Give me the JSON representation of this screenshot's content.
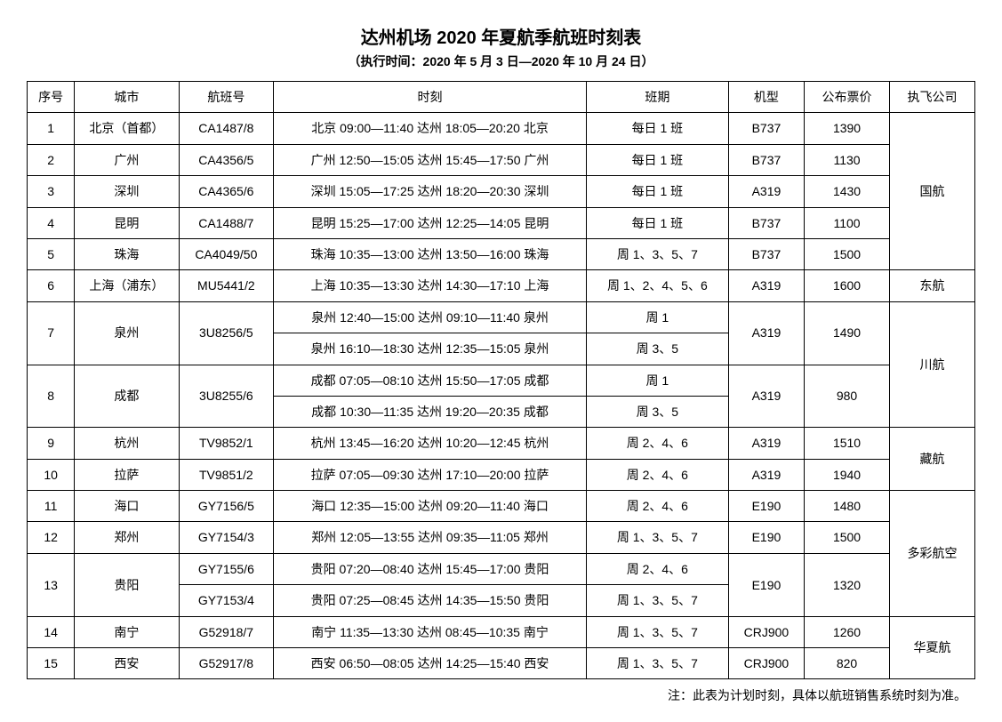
{
  "title": "达州机场 2020 年夏航季航班时刻表",
  "subtitle": "（执行时间：2020 年 5 月 3 日—2020 年 10 月 24 日）",
  "headers": {
    "idx": "序号",
    "city": "城市",
    "flight": "航班号",
    "time": "时刻",
    "days": "班期",
    "model": "机型",
    "price": "公布票价",
    "airline": "执飞公司"
  },
  "rows": {
    "r1": {
      "idx": "1",
      "city": "北京（首都）",
      "flight": "CA1487/8",
      "time": "北京 09:00—11:40 达州 18:05—20:20 北京",
      "days": "每日 1 班",
      "model": "B737",
      "price": "1390"
    },
    "r2": {
      "idx": "2",
      "city": "广州",
      "flight": "CA4356/5",
      "time": "广州 12:50—15:05 达州 15:45—17:50 广州",
      "days": "每日 1 班",
      "model": "B737",
      "price": "1130"
    },
    "r3": {
      "idx": "3",
      "city": "深圳",
      "flight": "CA4365/6",
      "time": "深圳 15:05—17:25 达州 18:20—20:30 深圳",
      "days": "每日 1 班",
      "model": "A319",
      "price": "1430"
    },
    "r4": {
      "idx": "4",
      "city": "昆明",
      "flight": "CA1488/7",
      "time": "昆明 15:25—17:00 达州 12:25—14:05 昆明",
      "days": "每日 1 班",
      "model": "B737",
      "price": "1100"
    },
    "r5": {
      "idx": "5",
      "city": "珠海",
      "flight": "CA4049/50",
      "time": "珠海 10:35—13:00 达州 13:50—16:00 珠海",
      "days": "周 1、3、5、7",
      "model": "B737",
      "price": "1500"
    },
    "r6": {
      "idx": "6",
      "city": "上海（浦东）",
      "flight": "MU5441/2",
      "time": "上海 10:35—13:30 达州 14:30—17:10 上海",
      "days": "周 1、2、4、5、6",
      "model": "A319",
      "price": "1600"
    },
    "r7a": {
      "idx": "7",
      "city": "泉州",
      "flight": "3U8256/5",
      "time": "泉州 12:40—15:00 达州 09:10—11:40 泉州",
      "days": "周 1",
      "model": "A319",
      "price": "1490"
    },
    "r7b": {
      "time": "泉州 16:10—18:30 达州 12:35—15:05 泉州",
      "days": "周 3、5"
    },
    "r8a": {
      "idx": "8",
      "city": "成都",
      "flight": "3U8255/6",
      "time": "成都 07:05—08:10 达州 15:50—17:05 成都",
      "days": "周 1",
      "model": "A319",
      "price": "980"
    },
    "r8b": {
      "time": "成都 10:30—11:35 达州 19:20—20:35 成都",
      "days": "周 3、5"
    },
    "r9": {
      "idx": "9",
      "city": "杭州",
      "flight": "TV9852/1",
      "time": "杭州 13:45—16:20 达州 10:20—12:45 杭州",
      "days": "周 2、4、6",
      "model": "A319",
      "price": "1510"
    },
    "r10": {
      "idx": "10",
      "city": "拉萨",
      "flight": "TV9851/2",
      "time": "拉萨 07:05—09:30 达州 17:10—20:00 拉萨",
      "days": "周 2、4、6",
      "model": "A319",
      "price": "1940"
    },
    "r11": {
      "idx": "11",
      "city": "海口",
      "flight": "GY7156/5",
      "time": "海口 12:35—15:00 达州 09:20—11:40 海口",
      "days": "周 2、4、6",
      "model": "E190",
      "price": "1480"
    },
    "r12": {
      "idx": "12",
      "city": "郑州",
      "flight": "GY7154/3",
      "time": "郑州 12:05—13:55 达州 09:35—11:05 郑州",
      "days": "周 1、3、5、7",
      "model": "E190",
      "price": "1500"
    },
    "r13a": {
      "idx": "13",
      "city": "贵阳",
      "flight": "GY7155/6",
      "time": "贵阳 07:20—08:40 达州 15:45—17:00 贵阳",
      "days": "周 2、4、6",
      "model": "E190",
      "price": "1320"
    },
    "r13b": {
      "flight": "GY7153/4",
      "time": "贵阳 07:25—08:45 达州 14:35—15:50 贵阳",
      "days": "周 1、3、5、7"
    },
    "r14": {
      "idx": "14",
      "city": "南宁",
      "flight": "G52918/7",
      "time": "南宁 11:35—13:30 达州 08:45—10:35 南宁",
      "days": "周 1、3、5、7",
      "model": "CRJ900",
      "price": "1260"
    },
    "r15": {
      "idx": "15",
      "city": "西安",
      "flight": "G52917/8",
      "time": "西安 06:50—08:05 达州 14:25—15:40 西安",
      "days": "周 1、3、5、7",
      "model": "CRJ900",
      "price": "820"
    }
  },
  "airlines": {
    "guohang": "国航",
    "donghang": "东航",
    "chuanhang": "川航",
    "zanghang": "藏航",
    "duocai": "多彩航空",
    "huaxia": "华夏航"
  },
  "footnote": "注：此表为计划时刻，具体以航班销售系统时刻为准。"
}
